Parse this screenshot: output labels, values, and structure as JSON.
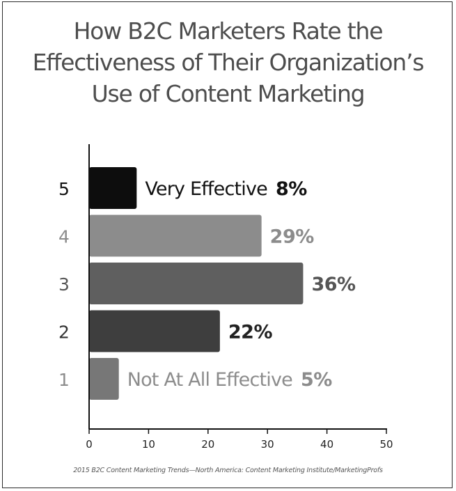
{
  "title_lines": [
    "How B2C Marketers Rate the",
    "Effectiveness of Their Organization’s",
    "Use of Content Marketing"
  ],
  "source": "2015 B2C Content Marketing Trends—North America: Content Marketing Institute/MarketingProfs",
  "chart_data": {
    "type": "bar",
    "orientation": "horizontal",
    "title": "How B2C Marketers Rate the Effectiveness of Their Organization’s Use of Content Marketing",
    "categories": [
      "5",
      "4",
      "3",
      "2",
      "1"
    ],
    "values": [
      8,
      29,
      36,
      22,
      5
    ],
    "bar_labels": [
      "Very Effective",
      "",
      "",
      "",
      "Not At All Effective"
    ],
    "value_labels": [
      "8%",
      "29%",
      "36%",
      "22%",
      "5%"
    ],
    "bar_colors": [
      "#0d0d0d",
      "#8c8c8c",
      "#5f5f5f",
      "#3e3e3e",
      "#777777"
    ],
    "label_colors": [
      "#111111",
      "#8c8c8c",
      "#555555",
      "#222222",
      "#8c8c8c"
    ],
    "category_colors": [
      "#111111",
      "#8c8c8c",
      "#555555",
      "#333333",
      "#8c8c8c"
    ],
    "xlim": [
      0,
      50
    ],
    "xticks": [
      "0",
      "10",
      "20",
      "30",
      "40",
      "50"
    ],
    "xlabel": "",
    "ylabel": "",
    "grid": false,
    "legend": "none"
  }
}
